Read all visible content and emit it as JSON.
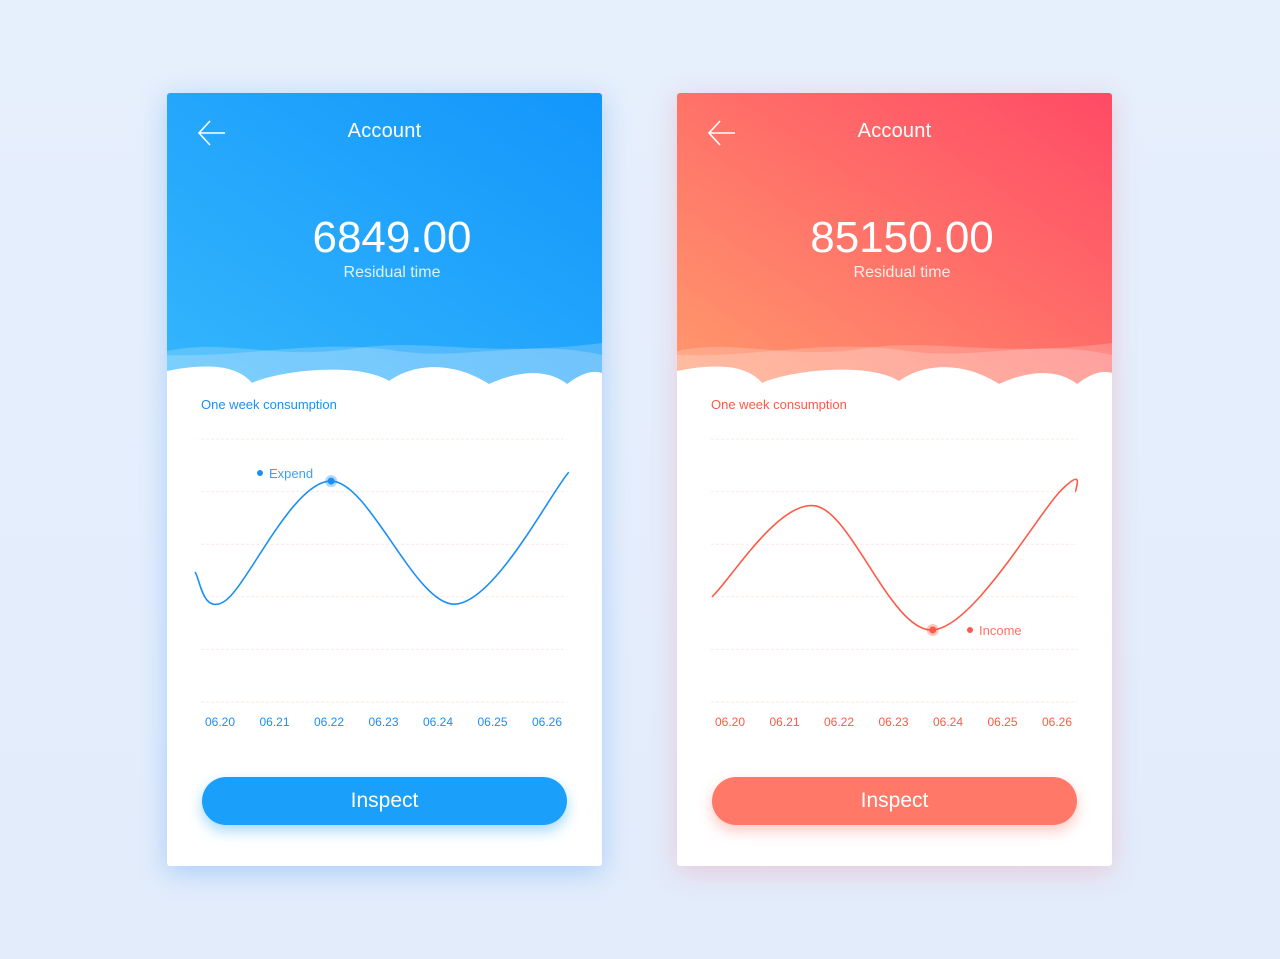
{
  "cards": [
    {
      "title": "Account",
      "amount": "6849.00",
      "subtitle": "Residual time",
      "section": "One week consumption",
      "button": "Inspect",
      "back_icon": "arrow-left-icon",
      "colors": {
        "grad_start": "#35b6fc",
        "grad_end": "#1296fb",
        "accent": "#1a8ff5"
      },
      "chart_data": {
        "type": "line",
        "categories": [
          "06.20",
          "06.21",
          "06.22",
          "06.23",
          "06.24",
          "06.25",
          "06.26"
        ],
        "ylim": [
          0,
          5
        ],
        "grid": true,
        "series": [
          {
            "name": "Expend",
            "points": [
              [
                -0.46,
                2.47
              ],
              [
                0.09,
                1.92
              ],
              [
                2.04,
                4.2
              ],
              [
                4.31,
                1.86
              ],
              [
                6.4,
                4.37
              ]
            ]
          }
        ],
        "highlight": [
          2.04,
          4.2
        ],
        "legend": "top-left"
      }
    },
    {
      "title": "Account",
      "amount": "85150.00",
      "subtitle": "Residual time",
      "section": "One week consumption",
      "button": "Inspect",
      "back_icon": "arrow-left-icon",
      "colors": {
        "grad_start": "#ff9a6c",
        "grad_end": "#ff4a66",
        "accent": "#ff5a45"
      },
      "chart_data": {
        "type": "line",
        "categories": [
          "06.20",
          "06.21",
          "06.22",
          "06.23",
          "06.24",
          "06.25",
          "06.26"
        ],
        "ylim": [
          0,
          5
        ],
        "grid": true,
        "series": [
          {
            "name": "Income",
            "points": [
              [
                -0.33,
                2.0
              ],
              [
                1.56,
                3.73
              ],
              [
                3.72,
                1.37
              ],
              [
                6.1,
                4.05
              ],
              [
                6.35,
                4.0
              ]
            ]
          }
        ],
        "highlight": [
          3.72,
          1.37
        ],
        "legend": "bottom-right"
      }
    }
  ]
}
